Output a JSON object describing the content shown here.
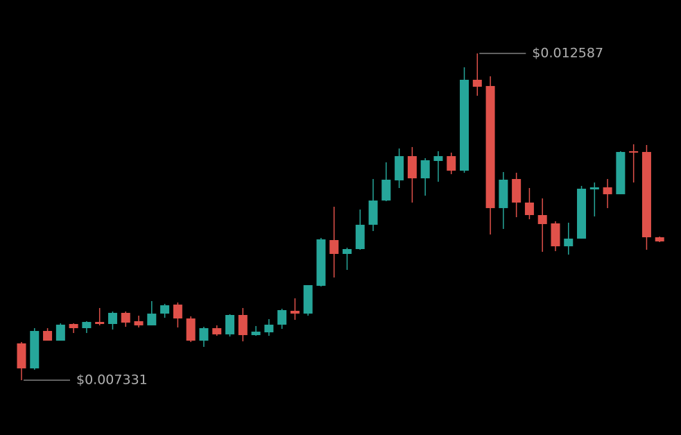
{
  "chart_data": {
    "type": "candlestick",
    "up_color": "#26a69a",
    "down_color": "#e0514a",
    "open": [
      0.007923,
      0.007521,
      0.008123,
      0.007967,
      0.008235,
      0.008168,
      0.008268,
      0.008235,
      0.008414,
      0.00828,
      0.008213,
      0.008402,
      0.008547,
      0.008324,
      0.007967,
      0.008168,
      0.008068,
      0.00838,
      0.008056,
      0.008101,
      0.008224,
      0.008447,
      0.008402,
      0.008849,
      0.009585,
      0.009362,
      0.00944,
      0.009831,
      0.010221,
      0.010545,
      0.010935,
      0.010578,
      0.010857,
      0.010935,
      0.010701,
      0.012163,
      0.012063,
      0.010099,
      0.010567,
      0.010188,
      0.009987,
      0.009853,
      0.009485,
      0.009608,
      0.0104,
      0.010433,
      0.010322,
      0.011014,
      0.011002,
      0.00963
    ],
    "high": [
      0.007945,
      0.008168,
      0.008168,
      0.008246,
      0.008246,
      0.00828,
      0.008492,
      0.008436,
      0.008436,
      0.008369,
      0.008603,
      0.008559,
      0.008581,
      0.008358,
      0.00819,
      0.008213,
      0.008391,
      0.008492,
      0.008202,
      0.008313,
      0.00848,
      0.008648,
      0.00886,
      0.009619,
      0.010121,
      0.009462,
      0.010076,
      0.010567,
      0.010835,
      0.011058,
      0.011081,
      0.010902,
      0.011014,
      0.010991,
      0.012364,
      0.012587,
      0.012219,
      0.010679,
      0.010668,
      0.010422,
      0.010255,
      0.009887,
      0.009864,
      0.010456,
      0.010511,
      0.010567,
      0.011014,
      0.011125,
      0.011114,
      0.009641
    ],
    "low": [
      0.007331,
      0.007499,
      0.007967,
      0.007967,
      0.00809,
      0.00809,
      0.008213,
      0.008146,
      0.00819,
      0.008179,
      0.008213,
      0.008335,
      0.008179,
      0.007945,
      0.007867,
      0.008045,
      0.008034,
      0.007956,
      0.008045,
      0.008045,
      0.008157,
      0.008302,
      0.008369,
      0.008838,
      0.008983,
      0.009105,
      0.009429,
      0.00973,
      0.01021,
      0.010422,
      0.010188,
      0.010299,
      0.010523,
      0.010645,
      0.010668,
      0.011906,
      0.009675,
      0.009764,
      0.009953,
      0.00992,
      0.009396,
      0.009407,
      0.009351,
      0.009608,
      0.009965,
      0.010099,
      0.010322,
      0.010511,
      0.009429,
      0.009552
    ],
    "close": [
      0.007521,
      0.008123,
      0.007967,
      0.008224,
      0.008168,
      0.008268,
      0.008235,
      0.008414,
      0.008257,
      0.008213,
      0.008402,
      0.008536,
      0.008324,
      0.007967,
      0.008168,
      0.008068,
      0.00838,
      0.008056,
      0.008112,
      0.008224,
      0.008458,
      0.008402,
      0.00886,
      0.009596,
      0.009362,
      0.00944,
      0.009831,
      0.010221,
      0.010556,
      0.010935,
      0.010578,
      0.010869,
      0.010935,
      0.010701,
      0.012163,
      0.012051,
      0.010099,
      0.010556,
      0.010188,
      0.009987,
      0.009842,
      0.009485,
      0.009608,
      0.010411,
      0.010433,
      0.010322,
      0.011002,
      0.010991,
      0.00963,
      0.009563
    ],
    "annotations": [
      {
        "value": 0.012587,
        "label": "$0.012587"
      },
      {
        "value": 0.007331,
        "label": "$0.007331"
      }
    ]
  }
}
